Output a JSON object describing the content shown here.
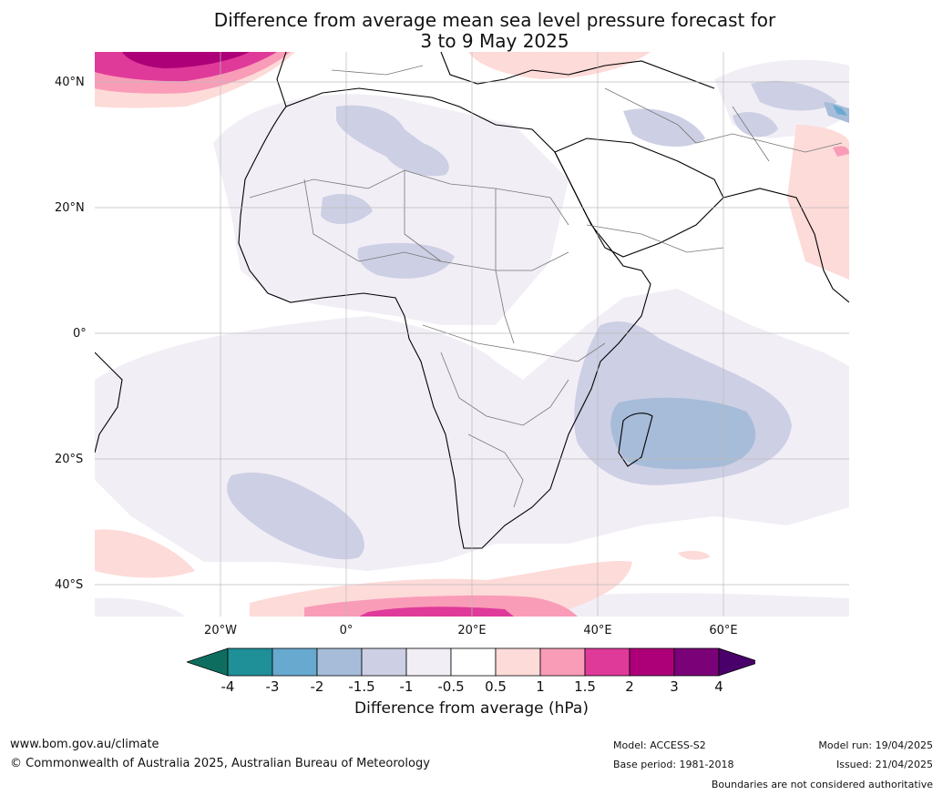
{
  "title": {
    "line1": "Difference from average mean sea level pressure forecast for",
    "line2": "3 to 9 May 2025"
  },
  "map": {
    "graticule_lat_labels": [
      "40°N",
      "20°N",
      "0°",
      "20°S",
      "40°S"
    ],
    "graticule_lon_labels": [
      "20°W",
      "0°",
      "20°E",
      "40°E",
      "60°E"
    ]
  },
  "colorbar": {
    "ticks": [
      "-4",
      "-3",
      "-2",
      "-1.5",
      "-1",
      "-0.5",
      "0.5",
      "1",
      "1.5",
      "2",
      "3",
      "4"
    ],
    "colors": [
      "#0d6e5f",
      "#1f8f98",
      "#67a9cf",
      "#a6bcd8",
      "#cdcfe4",
      "#f2eef6",
      "#ffffff",
      "#fddbd9",
      "#f99cb8",
      "#df3a9a",
      "#ad0078",
      "#7a0177",
      "#49006a"
    ],
    "label": "Difference from average (hPa)"
  },
  "footer": {
    "url": "www.bom.gov.au/climate",
    "copyright": "© Commonwealth of Australia 2025, Australian Bureau of Meteorology",
    "model": "Model: ACCESS-S2",
    "base_period": "Base period: 1981-2018",
    "model_run": "Model run: 19/04/2025",
    "issued": "Issued: 21/04/2025",
    "boundaries": "Boundaries are not considered authoritative"
  }
}
